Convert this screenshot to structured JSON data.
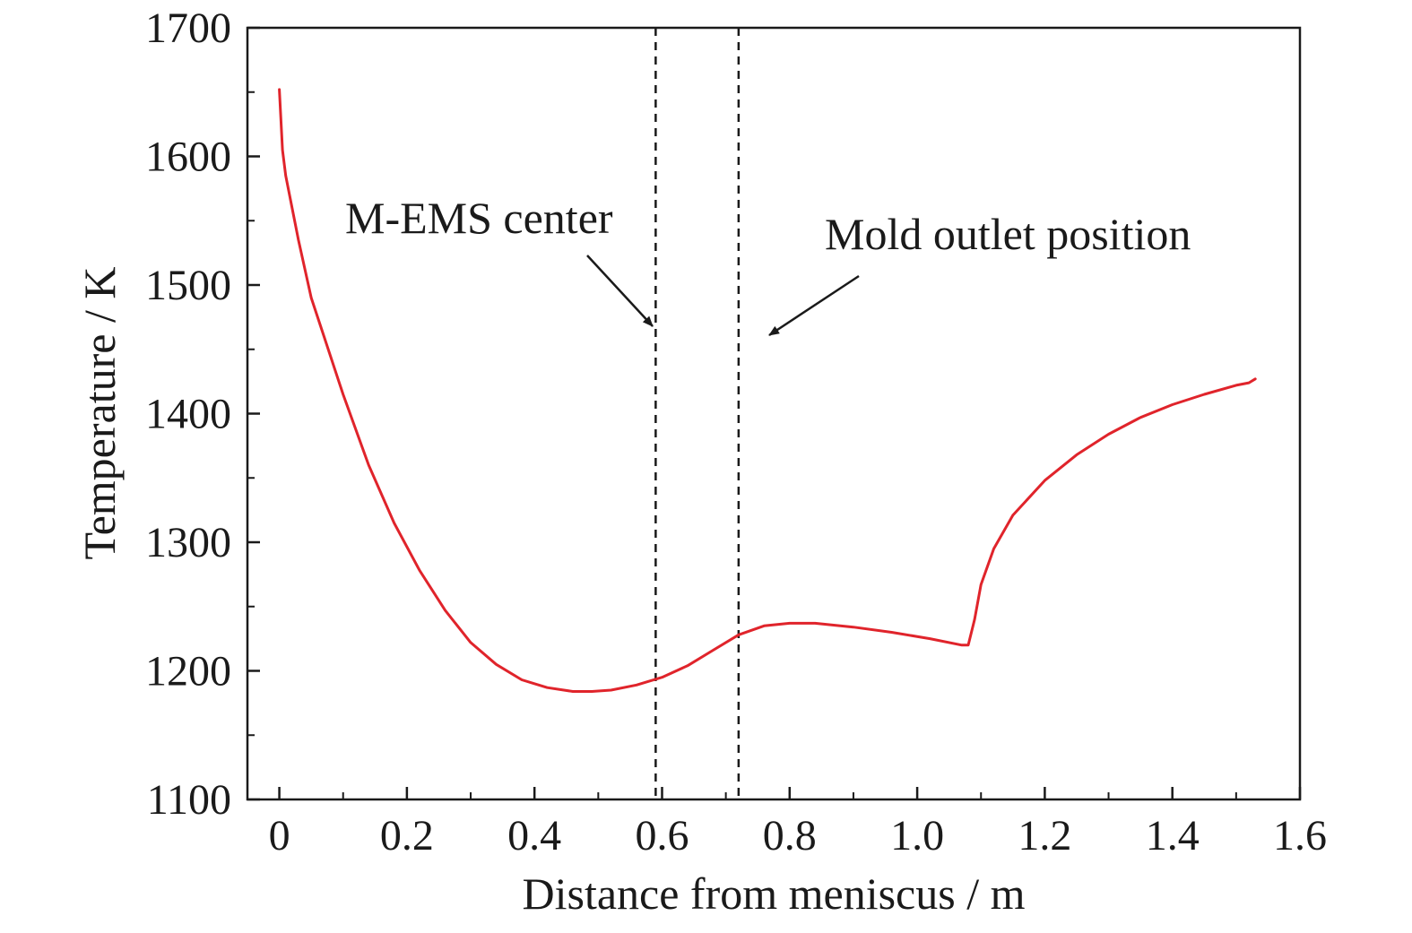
{
  "chart_data": {
    "type": "line",
    "title": "",
    "xlabel": "Distance from meniscus / m",
    "ylabel": "Temperature / K",
    "xlim": [
      -0.05,
      1.6
    ],
    "ylim": [
      1100,
      1700
    ],
    "x_ticks": [
      0,
      0.2,
      0.4,
      0.6,
      0.8,
      1.0,
      1.2,
      1.4,
      1.6
    ],
    "x_tick_labels": [
      "0",
      "0.2",
      "0.4",
      "0.6",
      "0.8",
      "1.0",
      "1.2",
      "1.4",
      "1.6"
    ],
    "y_ticks": [
      1100,
      1200,
      1300,
      1400,
      1500,
      1600,
      1700
    ],
    "y_tick_labels": [
      "1100",
      "1200",
      "1300",
      "1400",
      "1500",
      "1600",
      "1700"
    ],
    "x_minor_step": 0.1,
    "y_minor_step": 50,
    "grid": false,
    "line_color": "#e0242b",
    "series": [
      {
        "values_x": [
          0,
          0.005,
          0.01,
          0.02,
          0.03,
          0.05,
          0.07,
          0.1,
          0.14,
          0.18,
          0.22,
          0.26,
          0.3,
          0.34,
          0.38,
          0.42,
          0.46,
          0.49,
          0.52,
          0.56,
          0.6,
          0.64,
          0.68,
          0.72,
          0.76,
          0.8,
          0.84,
          0.9,
          0.96,
          1.02,
          1.07,
          1.08,
          1.09,
          1.1,
          1.12,
          1.15,
          1.2,
          1.25,
          1.3,
          1.35,
          1.4,
          1.45,
          1.5,
          1.52,
          1.53
        ],
        "values_y": [
          1652,
          1605,
          1585,
          1560,
          1535,
          1490,
          1460,
          1415,
          1360,
          1315,
          1278,
          1247,
          1222,
          1205,
          1193,
          1187,
          1184,
          1184,
          1185,
          1189,
          1195,
          1204,
          1216,
          1228,
          1235,
          1237,
          1237,
          1234,
          1230,
          1225,
          1220,
          1220,
          1240,
          1267,
          1295,
          1321,
          1348,
          1368,
          1384,
          1397,
          1407,
          1415,
          1422,
          1424,
          1427
        ]
      }
    ],
    "reference_lines": [
      {
        "x": 0.59,
        "style": "dashed"
      },
      {
        "x": 0.72,
        "style": "dashed"
      }
    ],
    "annotations": [
      {
        "text": "M-EMS center",
        "points_to_x": 0.59
      },
      {
        "text": "Mold outlet position",
        "points_to_x": 0.72
      }
    ]
  }
}
